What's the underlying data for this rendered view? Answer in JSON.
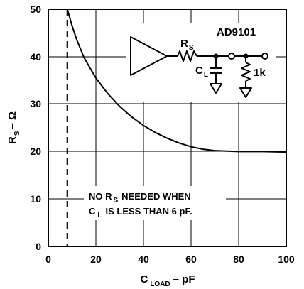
{
  "chart_data": {
    "type": "line",
    "xlabel_main": "C",
    "xlabel_sub": "LOAD",
    "xlabel_unit": "– pF",
    "ylabel_main": "R",
    "ylabel_sub": "S",
    "ylabel_unit": "– Ω",
    "xlim": [
      0,
      100
    ],
    "ylim": [
      0,
      50
    ],
    "x_ticks": [
      "0",
      "20",
      "40",
      "60",
      "80",
      "100"
    ],
    "y_ticks": [
      "0",
      "10",
      "20",
      "30",
      "40",
      "50"
    ],
    "grid": true,
    "series": [
      {
        "x": [
          8,
          10,
          12,
          15,
          20,
          25,
          30,
          35,
          40,
          45,
          50,
          55,
          60,
          65,
          70,
          75,
          80,
          90,
          100
        ],
        "y": [
          50,
          46.5,
          43.5,
          39.8,
          35.5,
          32.2,
          29.5,
          27.3,
          25.5,
          24.0,
          22.8,
          21.8,
          21.0,
          20.5,
          20.2,
          20.1,
          20.0,
          20.0,
          19.9
        ]
      }
    ],
    "threshold_line": {
      "x": 8,
      "style": "dashed"
    },
    "annotation": {
      "line1_a": "NO R",
      "line1_sub": "S",
      "line1_b": "NEEDED WHEN",
      "line2_a": "C",
      "line2_sub": "L",
      "line2_b": "IS LESS THAN 6 pF."
    },
    "inset": {
      "part": "AD9101",
      "rs_main": "R",
      "rs_sub": "S",
      "cl_main": "C",
      "cl_sub": "L",
      "load_r": "1k"
    }
  }
}
